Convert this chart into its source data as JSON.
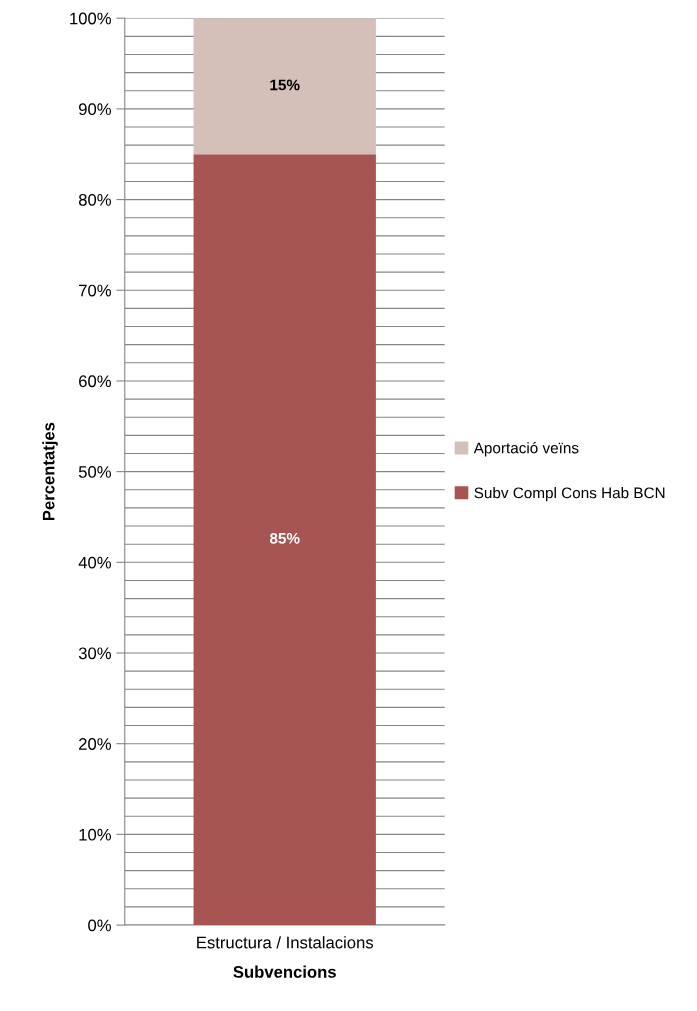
{
  "chart_data": {
    "type": "bar",
    "stacked": true,
    "xlabel": "Subvencions",
    "ylabel": "Percentatjes",
    "categories": [
      "Estructura / Instalacions"
    ],
    "series": [
      {
        "name": "Subv Compl Cons Hab BCN",
        "color": "#a65553",
        "values": [
          85
        ],
        "value_labels": [
          "85%"
        ]
      },
      {
        "name": "Aportació veïns",
        "color": "#d5c0b9",
        "values": [
          15
        ],
        "value_labels": [
          "15%"
        ]
      }
    ],
    "ylim": [
      0,
      100
    ],
    "yticks": [
      {
        "value": 0,
        "label": "0%"
      },
      {
        "value": 2,
        "label": null
      },
      {
        "value": 4,
        "label": null
      },
      {
        "value": 6,
        "label": null
      },
      {
        "value": 8,
        "label": null
      },
      {
        "value": 10,
        "label": "10%"
      },
      {
        "value": 12,
        "label": null
      },
      {
        "value": 14,
        "label": null
      },
      {
        "value": 16,
        "label": null
      },
      {
        "value": 18,
        "label": null
      },
      {
        "value": 20,
        "label": "20%"
      },
      {
        "value": 22,
        "label": null
      },
      {
        "value": 24,
        "label": null
      },
      {
        "value": 26,
        "label": null
      },
      {
        "value": 28,
        "label": null
      },
      {
        "value": 30,
        "label": "30%"
      },
      {
        "value": 32,
        "label": null
      },
      {
        "value": 34,
        "label": null
      },
      {
        "value": 36,
        "label": null
      },
      {
        "value": 38,
        "label": null
      },
      {
        "value": 40,
        "label": "40%"
      },
      {
        "value": 42,
        "label": null
      },
      {
        "value": 44,
        "label": null
      },
      {
        "value": 46,
        "label": null
      },
      {
        "value": 48,
        "label": null
      },
      {
        "value": 50,
        "label": "50%"
      },
      {
        "value": 52,
        "label": null
      },
      {
        "value": 54,
        "label": null
      },
      {
        "value": 56,
        "label": null
      },
      {
        "value": 58,
        "label": null
      },
      {
        "value": 60,
        "label": "60%"
      },
      {
        "value": 62,
        "label": null
      },
      {
        "value": 64,
        "label": null
      },
      {
        "value": 66,
        "label": null
      },
      {
        "value": 68,
        "label": null
      },
      {
        "value": 70,
        "label": "70%"
      },
      {
        "value": 72,
        "label": null
      },
      {
        "value": 74,
        "label": null
      },
      {
        "value": 76,
        "label": null
      },
      {
        "value": 78,
        "label": null
      },
      {
        "value": 80,
        "label": "80%"
      },
      {
        "value": 82,
        "label": null
      },
      {
        "value": 84,
        "label": null
      },
      {
        "value": 86,
        "label": null
      },
      {
        "value": 88,
        "label": null
      },
      {
        "value": 90,
        "label": "90%"
      },
      {
        "value": 92,
        "label": null
      },
      {
        "value": 94,
        "label": null
      },
      {
        "value": 96,
        "label": null
      },
      {
        "value": 98,
        "label": null
      },
      {
        "value": 100,
        "label": "100%"
      }
    ],
    "grid": "y",
    "legend": "right"
  }
}
